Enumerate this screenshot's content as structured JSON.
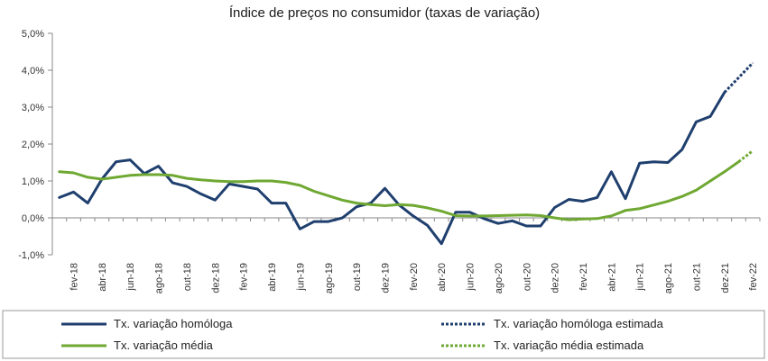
{
  "chart_data": {
    "type": "line",
    "title": "Índice de preços no consumidor  (taxas  de variação)",
    "xlabel": "",
    "ylabel": "",
    "ylim": [
      -1.0,
      5.0
    ],
    "yticks": [
      "5,0%",
      "4,0%",
      "3,0%",
      "2,0%",
      "1,0%",
      "0,0%",
      "-1,0%"
    ],
    "ytick_values": [
      5,
      4,
      3,
      2,
      1,
      0,
      -1
    ],
    "grid": false,
    "legend_position": "bottom",
    "x": [
      "jan-18",
      "fev-18",
      "mar-18",
      "abr-18",
      "mai-18",
      "jun-18",
      "jul-18",
      "ago-18",
      "set-18",
      "out-18",
      "nov-18",
      "dez-18",
      "jan-19",
      "fev-19",
      "mar-19",
      "abr-19",
      "mai-19",
      "jun-19",
      "jul-19",
      "ago-19",
      "set-19",
      "out-19",
      "nov-19",
      "dez-19",
      "jan-20",
      "fev-20",
      "mar-20",
      "abr-20",
      "mai-20",
      "jun-20",
      "jul-20",
      "ago-20",
      "set-20",
      "out-20",
      "nov-20",
      "dez-20",
      "jan-21",
      "fev-21",
      "mar-21",
      "abr-21",
      "mai-21",
      "jun-21",
      "jul-21",
      "ago-21",
      "set-21",
      "out-21",
      "nov-21",
      "dez-21",
      "jan-22",
      "fev-22"
    ],
    "x_tick_labels": [
      "fev-18",
      "abr-18",
      "jun-18",
      "ago-18",
      "out-18",
      "dez-18",
      "fev-19",
      "abr-19",
      "jun-19",
      "ago-19",
      "out-19",
      "dez-19",
      "fev-20",
      "abr-20",
      "jun-20",
      "ago-20",
      "out-20",
      "dez-20",
      "fev-21",
      "abr-21",
      "jun-21",
      "ago-21",
      "out-21",
      "dez-21",
      "fev-22"
    ],
    "series": [
      {
        "name": "Tx. variação homóloga",
        "color": "#1f3f6e",
        "style": "solid",
        "values": [
          0.55,
          0.7,
          0.4,
          1.05,
          1.52,
          1.57,
          1.2,
          1.4,
          0.95,
          0.85,
          0.65,
          0.48,
          0.92,
          0.85,
          0.78,
          0.4,
          0.4,
          -0.3,
          -0.1,
          -0.1,
          0.0,
          0.3,
          0.4,
          0.8,
          0.35,
          0.05,
          -0.2,
          -0.7,
          0.15,
          0.15,
          -0.02,
          -0.15,
          -0.08,
          -0.22,
          -0.22,
          0.28,
          0.5,
          0.45,
          0.55,
          1.25,
          0.52,
          1.48,
          1.52,
          1.5,
          1.85,
          2.6,
          2.75,
          3.4,
          null,
          null
        ]
      },
      {
        "name": "Tx. variação homóloga estimada",
        "color": "#1f3f6e",
        "style": "dotted",
        "values": [
          null,
          null,
          null,
          null,
          null,
          null,
          null,
          null,
          null,
          null,
          null,
          null,
          null,
          null,
          null,
          null,
          null,
          null,
          null,
          null,
          null,
          null,
          null,
          null,
          null,
          null,
          null,
          null,
          null,
          null,
          null,
          null,
          null,
          null,
          null,
          null,
          null,
          null,
          null,
          null,
          null,
          null,
          null,
          null,
          null,
          null,
          null,
          3.4,
          3.8,
          4.2
        ]
      },
      {
        "name": "Tx. variação média",
        "color": "#6fa832",
        "style": "solid",
        "values": [
          1.25,
          1.22,
          1.1,
          1.05,
          1.1,
          1.15,
          1.17,
          1.17,
          1.15,
          1.07,
          1.03,
          1.0,
          0.98,
          0.98,
          1.0,
          1.0,
          0.96,
          0.88,
          0.72,
          0.6,
          0.48,
          0.4,
          0.36,
          0.33,
          0.36,
          0.34,
          0.27,
          0.18,
          0.06,
          0.05,
          0.05,
          0.06,
          0.07,
          0.08,
          0.06,
          0.0,
          -0.05,
          -0.03,
          -0.02,
          0.05,
          0.2,
          0.25,
          0.35,
          0.45,
          0.58,
          0.75,
          1.0,
          1.25,
          1.52,
          null
        ]
      },
      {
        "name": "Tx. variação média  estimada",
        "color": "#6fa832",
        "style": "dotted",
        "values": [
          null,
          null,
          null,
          null,
          null,
          null,
          null,
          null,
          null,
          null,
          null,
          null,
          null,
          null,
          null,
          null,
          null,
          null,
          null,
          null,
          null,
          null,
          null,
          null,
          null,
          null,
          null,
          null,
          null,
          null,
          null,
          null,
          null,
          null,
          null,
          null,
          null,
          null,
          null,
          null,
          null,
          null,
          null,
          null,
          null,
          null,
          null,
          null,
          1.52,
          1.82
        ]
      }
    ]
  }
}
